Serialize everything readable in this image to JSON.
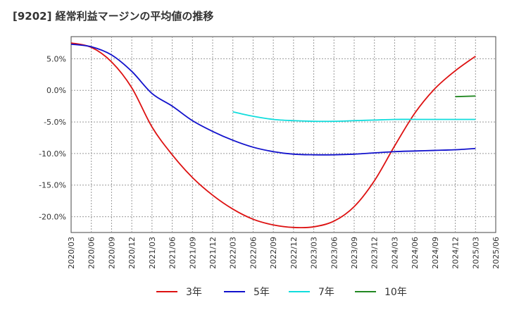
{
  "title": "[9202]  経常利益マージンの平均値の推移",
  "chart_data": {
    "type": "line",
    "title": "[9202]  経常利益マージンの平均値の推移",
    "xlabel": "",
    "ylabel": "",
    "x_ticks": [
      "2020/03",
      "2020/06",
      "2020/09",
      "2020/12",
      "2021/03",
      "2021/06",
      "2021/09",
      "2021/12",
      "2022/03",
      "2022/06",
      "2022/09",
      "2022/12",
      "2023/03",
      "2023/06",
      "2023/09",
      "2023/12",
      "2024/03",
      "2024/06",
      "2024/09",
      "2024/12",
      "2025/03",
      "2025/06"
    ],
    "y_ticks": [
      "5.0%",
      "0.0%",
      "-5.0%",
      "-10.0%",
      "-15.0%",
      "-20.0%"
    ],
    "y_tick_values": [
      5,
      0,
      -5,
      -10,
      -15,
      -20
    ],
    "ylim": [
      -22.5,
      8.5
    ],
    "grid": true,
    "legend_position": "bottom",
    "series": [
      {
        "name": "3年",
        "color": "#dd1111",
        "x": [
          "2020/03",
          "2020/06",
          "2020/09",
          "2020/12",
          "2021/03",
          "2021/06",
          "2021/09",
          "2021/12",
          "2022/03",
          "2022/06",
          "2022/09",
          "2022/12",
          "2023/03",
          "2023/06",
          "2023/09",
          "2023/12",
          "2024/03",
          "2024/06",
          "2024/09",
          "2024/12",
          "2025/03"
        ],
        "values": [
          7.5,
          6.8,
          4.5,
          0.4,
          -5.8,
          -10.2,
          -13.8,
          -16.6,
          -18.8,
          -20.4,
          -21.3,
          -21.7,
          -21.6,
          -20.7,
          -18.4,
          -14.3,
          -8.8,
          -3.6,
          0.3,
          3.1,
          5.4
        ]
      },
      {
        "name": "5年",
        "color": "#1111cc",
        "x": [
          "2020/03",
          "2020/06",
          "2020/09",
          "2020/12",
          "2021/03",
          "2021/06",
          "2021/09",
          "2021/12",
          "2022/03",
          "2022/06",
          "2022/09",
          "2022/12",
          "2023/03",
          "2023/06",
          "2023/09",
          "2023/12",
          "2024/03",
          "2024/06",
          "2024/09",
          "2024/12",
          "2025/03"
        ],
        "values": [
          7.3,
          6.9,
          5.6,
          3.0,
          -0.5,
          -2.5,
          -4.8,
          -6.5,
          -7.9,
          -9.0,
          -9.7,
          -10.1,
          -10.2,
          -10.2,
          -10.1,
          -9.9,
          -9.7,
          -9.6,
          -9.5,
          -9.4,
          -9.2
        ]
      },
      {
        "name": "7年",
        "color": "#11dddd",
        "x": [
          "2022/03",
          "2022/06",
          "2022/09",
          "2022/12",
          "2023/03",
          "2023/06",
          "2023/09",
          "2023/12",
          "2024/03",
          "2024/06",
          "2024/09",
          "2024/12",
          "2025/03"
        ],
        "values": [
          -3.4,
          -4.1,
          -4.6,
          -4.8,
          -4.9,
          -4.9,
          -4.8,
          -4.7,
          -4.6,
          -4.6,
          -4.6,
          -4.6,
          -4.6
        ]
      },
      {
        "name": "10年",
        "color": "#228822",
        "x": [
          "2024/12",
          "2025/03"
        ],
        "values": [
          -1.0,
          -0.9
        ]
      }
    ]
  }
}
